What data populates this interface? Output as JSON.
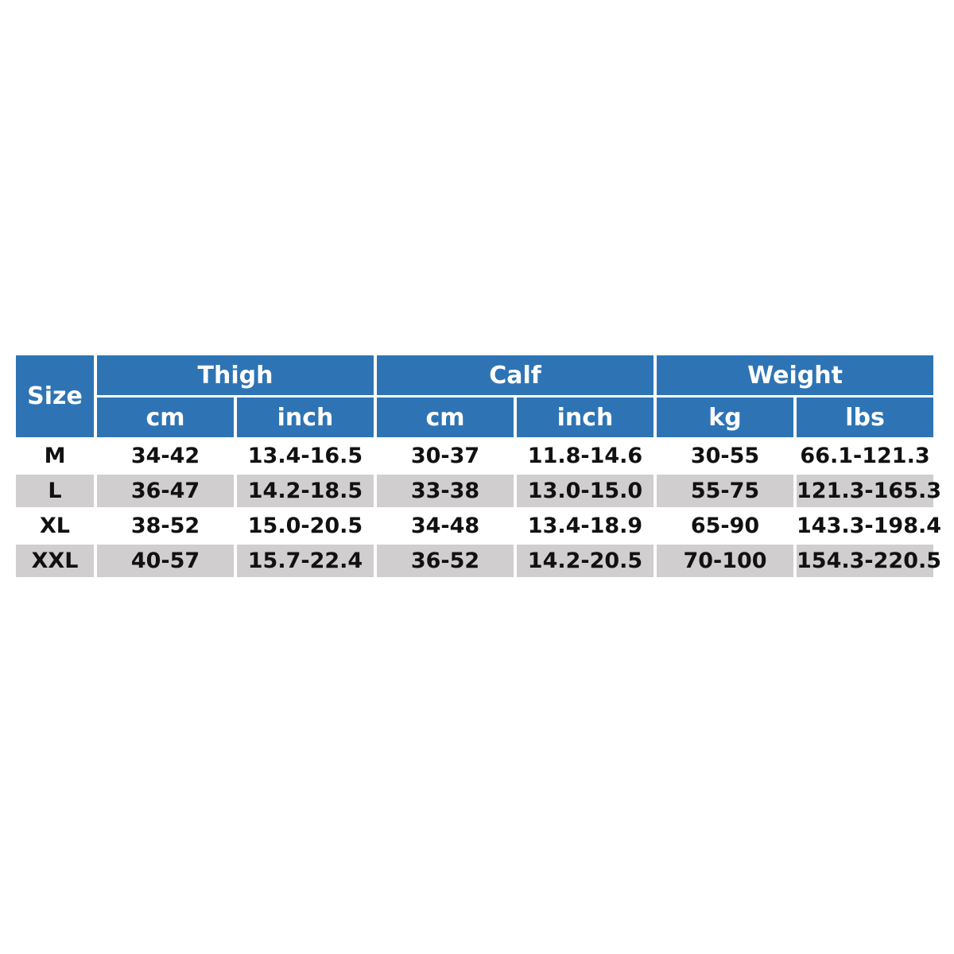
{
  "table": {
    "header": {
      "size": "Size",
      "groups": [
        "Thigh",
        "Calf",
        "Weight"
      ],
      "units": [
        "cm",
        "inch",
        "cm",
        "inch",
        "kg",
        "lbs"
      ]
    },
    "rows": [
      [
        "M",
        "34-42",
        "13.4-16.5",
        "30-37",
        "11.8-14.6",
        "30-55",
        "66.1-121.3"
      ],
      [
        "L",
        "36-47",
        "14.2-18.5",
        "33-38",
        "13.0-15.0",
        "55-75",
        "121.3-165.3"
      ],
      [
        "XL",
        "38-52",
        "15.0-20.5",
        "34-48",
        "13.4-18.9",
        "65-90",
        "143.3-198.4"
      ],
      [
        "XXL",
        "40-57",
        "15.7-22.4",
        "36-52",
        "14.2-20.5",
        "70-100",
        "154.3-220.5"
      ]
    ]
  }
}
